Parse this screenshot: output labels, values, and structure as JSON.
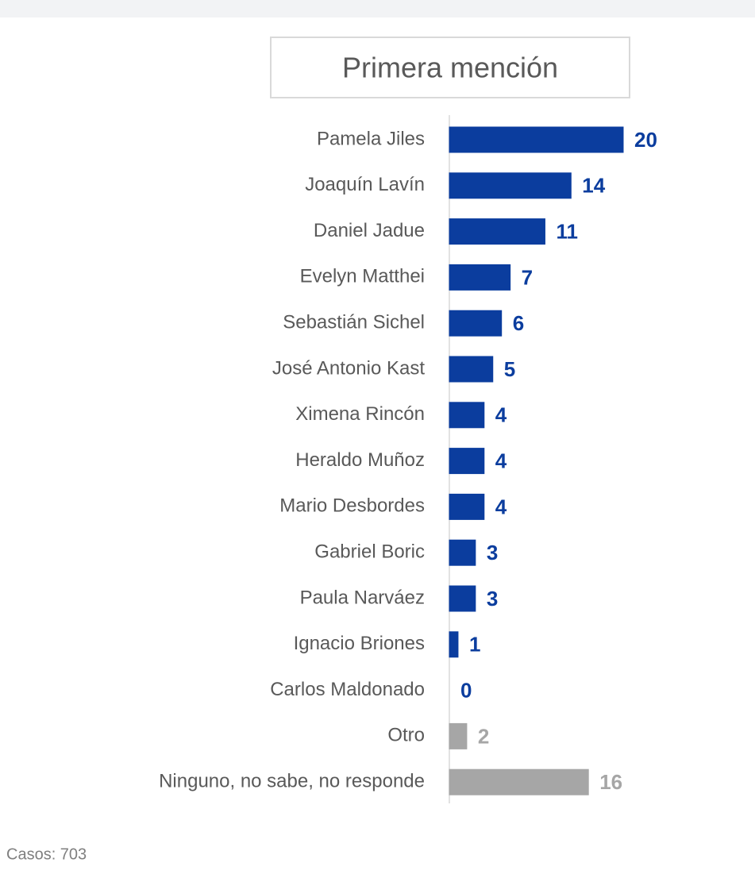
{
  "chart_data": {
    "type": "barh",
    "title": "Primera mención",
    "categories": [
      "Pamela Jiles",
      "Joaquín Lavín",
      "Daniel Jadue",
      "Evelyn Matthei",
      "Sebastián Sichel",
      "José Antonio Kast",
      "Ximena Rincón",
      "Heraldo Muñoz",
      "Mario Desbordes",
      "Gabriel Boric",
      "Paula Narváez",
      "Ignacio Briones",
      "Carlos Maldonado",
      "Otro",
      "Ninguno, no sabe, no responde"
    ],
    "values": [
      20,
      14,
      11,
      7,
      6,
      5,
      4,
      4,
      4,
      3,
      3,
      1,
      0,
      2,
      16
    ],
    "colors": [
      "#0b3d9e",
      "#0b3d9e",
      "#0b3d9e",
      "#0b3d9e",
      "#0b3d9e",
      "#0b3d9e",
      "#0b3d9e",
      "#0b3d9e",
      "#0b3d9e",
      "#0b3d9e",
      "#0b3d9e",
      "#0b3d9e",
      "#0b3d9e",
      "#a6a6a6",
      "#a6a6a6"
    ],
    "note": "Casos: 703"
  }
}
